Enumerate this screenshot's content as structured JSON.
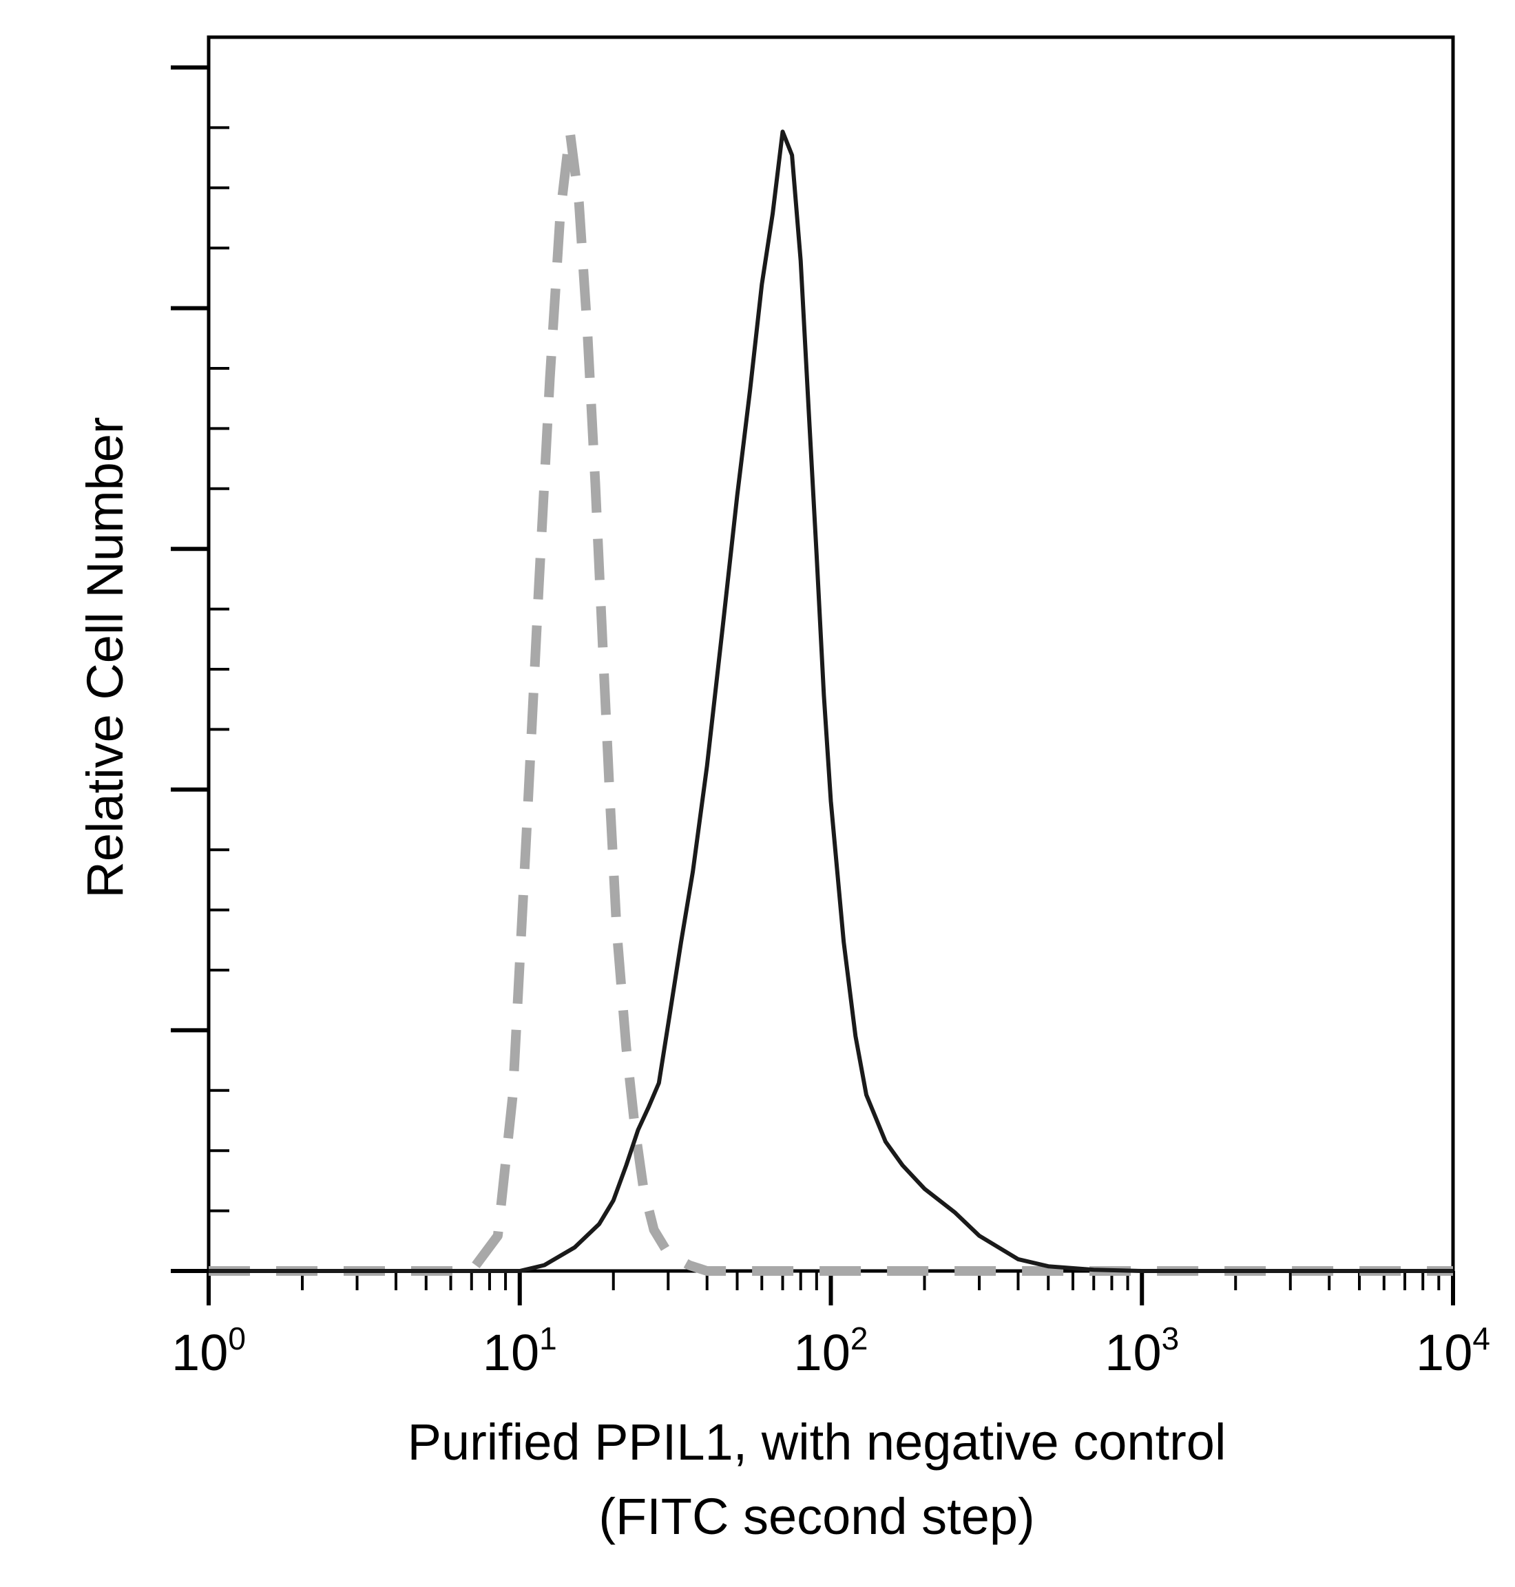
{
  "chart_data": {
    "type": "line",
    "title": "",
    "xlabel_lines": [
      "Purified PPIL1, with negative control",
      "(FITC second step)"
    ],
    "ylabel": "Relative Cell Number",
    "x_scale": "log",
    "xlim": [
      1,
      10000
    ],
    "ylim": [
      0,
      1.0
    ],
    "x_ticks": [
      {
        "value": 1,
        "base": "10",
        "exp": "0"
      },
      {
        "value": 10,
        "base": "10",
        "exp": "1"
      },
      {
        "value": 100,
        "base": "10",
        "exp": "2"
      },
      {
        "value": 1000,
        "base": "10",
        "exp": "3"
      },
      {
        "value": 10000,
        "base": "10",
        "exp": "4"
      }
    ],
    "y_tick_count": 21,
    "grid": false,
    "legend": "none",
    "series": [
      {
        "style": "dashed",
        "color": "#a8a8a8",
        "x": [
          1,
          4,
          7,
          8.5,
          9.5,
          10.5,
          11.5,
          12.5,
          13.5,
          14.5,
          15.5,
          16.5,
          17.5,
          18.5,
          19.5,
          20.5,
          22,
          23.5,
          25,
          27,
          30,
          35,
          40,
          50,
          100,
          1000,
          10000
        ],
        "y": [
          0,
          0,
          0,
          0.03,
          0.15,
          0.37,
          0.58,
          0.76,
          0.9,
          0.97,
          0.91,
          0.8,
          0.67,
          0.53,
          0.4,
          0.29,
          0.19,
          0.12,
          0.07,
          0.035,
          0.015,
          0.005,
          0,
          0,
          0,
          0,
          0
        ]
      },
      {
        "style": "solid",
        "color": "#1a1a1a",
        "x": [
          1,
          10,
          12,
          15,
          18,
          20,
          22,
          24,
          26,
          28,
          30,
          33,
          36,
          40,
          45,
          50,
          55,
          60,
          65,
          70,
          75,
          80,
          85,
          90,
          95,
          100,
          110,
          120,
          130,
          150,
          170,
          200,
          250,
          300,
          400,
          500,
          700,
          1000,
          10000
        ],
        "y": [
          0,
          0,
          0.005,
          0.02,
          0.04,
          0.06,
          0.09,
          0.12,
          0.14,
          0.16,
          0.21,
          0.28,
          0.34,
          0.43,
          0.55,
          0.66,
          0.75,
          0.84,
          0.9,
          0.97,
          0.95,
          0.86,
          0.73,
          0.61,
          0.49,
          0.4,
          0.28,
          0.2,
          0.15,
          0.11,
          0.09,
          0.07,
          0.05,
          0.03,
          0.01,
          0.004,
          0.001,
          0,
          0
        ]
      }
    ]
  }
}
